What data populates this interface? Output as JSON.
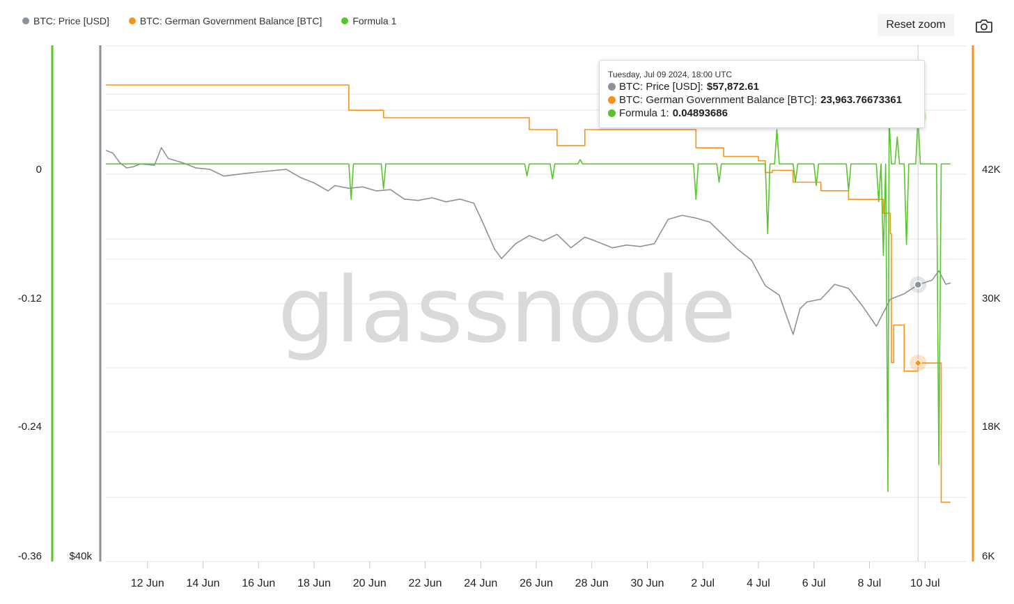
{
  "legend": [
    {
      "label": "BTC: Price [USD]",
      "color": "#8a939b"
    },
    {
      "label": "BTC: German Government Balance [BTC]",
      "color": "#f7931a"
    },
    {
      "label": "Formula 1",
      "color": "#55c728"
    }
  ],
  "toolbar": {
    "reset_label": "Reset zoom",
    "camera_icon": "camera-icon"
  },
  "watermark": "glassnode",
  "tooltip": {
    "date": "Tuesday, Jul 09 2024, 18:00 UTC",
    "rows": [
      {
        "label": "BTC: Price [USD]: ",
        "value": "$57,872.61",
        "color": "#8a939b"
      },
      {
        "label": "BTC: German Government Balance [BTC]: ",
        "value": "23,963.76673361",
        "color": "#f7931a"
      },
      {
        "label": "Formula 1: ",
        "value": "0.04893686",
        "color": "#55c728"
      }
    ]
  },
  "chart_data": {
    "type": "line",
    "x_ticks": [
      "12 Jun",
      "14 Jun",
      "16 Jun",
      "18 Jun",
      "20 Jun",
      "22 Jun",
      "24 Jun",
      "26 Jun",
      "28 Jun",
      "30 Jun",
      "2 Jul",
      "4 Jul",
      "6 Jul",
      "8 Jul",
      "10 Jul"
    ],
    "axes": {
      "formula": {
        "ticks": [
          "0",
          "-0.12",
          "-0.24",
          "-0.36"
        ],
        "range": [
          -0.36,
          0.1
        ],
        "color": "#55c728"
      },
      "price": {
        "ticks": [
          "$40k"
        ],
        "range": [
          40000,
          70000
        ],
        "color": "#8a939b"
      },
      "balance": {
        "ticks": [
          "42K",
          "30K",
          "18K",
          "6K"
        ],
        "range": [
          6000,
          54000
        ],
        "color": "#f7931a"
      }
    },
    "x_range": [
      "2024-06-10T12:00",
      "2024-07-11T12:00"
    ],
    "grid": true,
    "series": [
      {
        "name": "BTC: German Government Balance [BTC]",
        "color": "#f7931a",
        "step": true,
        "points": [
          [
            "2024-06-10T12:00",
            49850
          ],
          [
            "2024-06-19T06:00",
            49850
          ],
          [
            "2024-06-19T06:00",
            47500
          ],
          [
            "2024-06-20T06:00",
            47500
          ],
          [
            "2024-06-20T12:00",
            46800
          ],
          [
            "2024-06-25T12:00",
            46800
          ],
          [
            "2024-06-25T18:00",
            45700
          ],
          [
            "2024-06-26T12:00",
            45700
          ],
          [
            "2024-06-26T18:00",
            44200
          ],
          [
            "2024-06-27T12:00",
            44200
          ],
          [
            "2024-06-27T18:00",
            45700
          ],
          [
            "2024-07-01T12:00",
            45700
          ],
          [
            "2024-07-01T18:00",
            44000
          ],
          [
            "2024-07-02T12:00",
            44000
          ],
          [
            "2024-07-02T18:00",
            43200
          ],
          [
            "2024-07-03T12:00",
            43200
          ],
          [
            "2024-07-04T00:00",
            42800
          ],
          [
            "2024-07-04T06:00",
            41700
          ],
          [
            "2024-07-04T12:00",
            41900
          ],
          [
            "2024-07-05T00:00",
            41900
          ],
          [
            "2024-07-05T06:00",
            40800
          ],
          [
            "2024-07-06T00:00",
            40800
          ],
          [
            "2024-07-06T06:00",
            40000
          ],
          [
            "2024-07-07T06:00",
            40000
          ],
          [
            "2024-07-07T06:00",
            39200
          ],
          [
            "2024-07-08T06:00",
            39200
          ],
          [
            "2024-07-08T12:00",
            37900
          ],
          [
            "2024-07-08T18:00",
            36000
          ],
          [
            "2024-07-08T19:00",
            24000
          ],
          [
            "2024-07-08T21:00",
            27500
          ],
          [
            "2024-07-09T03:00",
            27500
          ],
          [
            "2024-07-09T06:00",
            23200
          ],
          [
            "2024-07-09T12:00",
            23200
          ],
          [
            "2024-07-09T18:00",
            23964
          ],
          [
            "2024-07-10T12:00",
            23964
          ],
          [
            "2024-07-10T14:00",
            11000
          ],
          [
            "2024-07-10T22:00",
            11000
          ]
        ]
      },
      {
        "name": "BTC: Price [USD]",
        "color": "#8a939b",
        "points": [
          [
            "2024-06-10T12:00",
            67800
          ],
          [
            "2024-06-10T18:00",
            67600
          ],
          [
            "2024-06-11T00:00",
            66900
          ],
          [
            "2024-06-11T06:00",
            66500
          ],
          [
            "2024-06-11T12:00",
            66600
          ],
          [
            "2024-06-11T18:00",
            66800
          ],
          [
            "2024-06-12T06:00",
            66700
          ],
          [
            "2024-06-12T12:00",
            68000
          ],
          [
            "2024-06-12T18:00",
            67200
          ],
          [
            "2024-06-13T06:00",
            66900
          ],
          [
            "2024-06-13T18:00",
            66500
          ],
          [
            "2024-06-14T06:00",
            66400
          ],
          [
            "2024-06-14T18:00",
            65900
          ],
          [
            "2024-06-15T12:00",
            66100
          ],
          [
            "2024-06-16T00:00",
            66200
          ],
          [
            "2024-06-16T12:00",
            66300
          ],
          [
            "2024-06-17T00:00",
            66400
          ],
          [
            "2024-06-17T12:00",
            65800
          ],
          [
            "2024-06-18T00:00",
            65400
          ],
          [
            "2024-06-18T12:00",
            64800
          ],
          [
            "2024-06-18T18:00",
            65200
          ],
          [
            "2024-06-19T06:00",
            65000
          ],
          [
            "2024-06-19T18:00",
            65100
          ],
          [
            "2024-06-20T06:00",
            64800
          ],
          [
            "2024-06-20T18:00",
            64900
          ],
          [
            "2024-06-21T06:00",
            64200
          ],
          [
            "2024-06-21T18:00",
            64100
          ],
          [
            "2024-06-22T06:00",
            64300
          ],
          [
            "2024-06-22T18:00",
            64000
          ],
          [
            "2024-06-23T06:00",
            64200
          ],
          [
            "2024-06-23T18:00",
            63900
          ],
          [
            "2024-06-24T00:00",
            62800
          ],
          [
            "2024-06-24T12:00",
            60500
          ],
          [
            "2024-06-24T18:00",
            59800
          ],
          [
            "2024-06-25T06:00",
            60900
          ],
          [
            "2024-06-25T18:00",
            61500
          ],
          [
            "2024-06-26T06:00",
            61100
          ],
          [
            "2024-06-26T18:00",
            61600
          ],
          [
            "2024-06-27T06:00",
            60600
          ],
          [
            "2024-06-27T18:00",
            61400
          ],
          [
            "2024-06-28T06:00",
            61000
          ],
          [
            "2024-06-28T18:00",
            60600
          ],
          [
            "2024-06-29T06:00",
            60800
          ],
          [
            "2024-06-29T18:00",
            60700
          ],
          [
            "2024-06-30T06:00",
            60900
          ],
          [
            "2024-06-30T18:00",
            62700
          ],
          [
            "2024-07-01T06:00",
            63000
          ],
          [
            "2024-07-01T18:00",
            62800
          ],
          [
            "2024-07-02T06:00",
            62500
          ],
          [
            "2024-07-02T18:00",
            61500
          ],
          [
            "2024-07-03T06:00",
            60500
          ],
          [
            "2024-07-03T18:00",
            59700
          ],
          [
            "2024-07-04T06:00",
            57800
          ],
          [
            "2024-07-04T18:00",
            57100
          ],
          [
            "2024-07-05T06:00",
            54200
          ],
          [
            "2024-07-05T12:00",
            56100
          ],
          [
            "2024-07-05T18:00",
            56600
          ],
          [
            "2024-07-06T06:00",
            56800
          ],
          [
            "2024-07-06T18:00",
            57900
          ],
          [
            "2024-07-07T06:00",
            57600
          ],
          [
            "2024-07-07T18:00",
            56300
          ],
          [
            "2024-07-08T06:00",
            54800
          ],
          [
            "2024-07-08T12:00",
            55800
          ],
          [
            "2024-07-08T18:00",
            56800
          ],
          [
            "2024-07-09T06:00",
            57200
          ],
          [
            "2024-07-09T18:00",
            57873
          ],
          [
            "2024-07-10T06:00",
            58200
          ],
          [
            "2024-07-10T12:00",
            58900
          ],
          [
            "2024-07-10T18:00",
            57900
          ],
          [
            "2024-07-10T22:00",
            58000
          ]
        ]
      },
      {
        "name": "Formula 1",
        "color": "#55c728",
        "points": [
          [
            "2024-06-10T12:00",
            0.005
          ],
          [
            "2024-06-19T06:00",
            0.005
          ],
          [
            "2024-06-19T08:00",
            -0.028
          ],
          [
            "2024-06-19T10:00",
            0.005
          ],
          [
            "2024-06-20T10:00",
            0.005
          ],
          [
            "2024-06-20T12:00",
            -0.018
          ],
          [
            "2024-06-20T14:00",
            0.005
          ],
          [
            "2024-06-25T14:00",
            0.005
          ],
          [
            "2024-06-25T16:00",
            -0.006
          ],
          [
            "2024-06-25T18:00",
            0.005
          ],
          [
            "2024-06-26T12:00",
            0.005
          ],
          [
            "2024-06-26T14:00",
            -0.009
          ],
          [
            "2024-06-26T16:00",
            0.005
          ],
          [
            "2024-06-27T12:00",
            0.005
          ],
          [
            "2024-06-27T14:00",
            0.009
          ],
          [
            "2024-06-27T16:00",
            0.005
          ],
          [
            "2024-07-01T16:00",
            0.005
          ],
          [
            "2024-07-01T18:00",
            -0.028
          ],
          [
            "2024-07-01T20:00",
            0.005
          ],
          [
            "2024-07-02T12:00",
            0.005
          ],
          [
            "2024-07-02T14:00",
            -0.012
          ],
          [
            "2024-07-02T16:00",
            0.005
          ],
          [
            "2024-07-04T06:00",
            0.005
          ],
          [
            "2024-07-04T08:00",
            -0.06
          ],
          [
            "2024-07-04T10:00",
            0.005
          ],
          [
            "2024-07-04T14:00",
            0.005
          ],
          [
            "2024-07-04T16:00",
            0.037
          ],
          [
            "2024-07-04T18:00",
            0.005
          ],
          [
            "2024-07-05T06:00",
            0.005
          ],
          [
            "2024-07-05T08:00",
            -0.012
          ],
          [
            "2024-07-05T10:00",
            0.005
          ],
          [
            "2024-07-06T00:00",
            0.005
          ],
          [
            "2024-07-06T02:00",
            -0.015
          ],
          [
            "2024-07-06T04:00",
            0.005
          ],
          [
            "2024-07-07T04:00",
            0.005
          ],
          [
            "2024-07-07T06:00",
            -0.02
          ],
          [
            "2024-07-07T08:00",
            0.005
          ],
          [
            "2024-07-08T06:00",
            0.005
          ],
          [
            "2024-07-08T08:00",
            -0.03
          ],
          [
            "2024-07-08T10:00",
            0.005
          ],
          [
            "2024-07-08T12:00",
            -0.08
          ],
          [
            "2024-07-08T14:00",
            0.005
          ],
          [
            "2024-07-08T16:00",
            -0.3
          ],
          [
            "2024-07-08T17:00",
            0.045
          ],
          [
            "2024-07-08T19:00",
            0.005
          ],
          [
            "2024-07-08T22:00",
            0.005
          ],
          [
            "2024-07-09T00:00",
            0.03
          ],
          [
            "2024-07-09T02:00",
            0.005
          ],
          [
            "2024-07-09T06:00",
            0.005
          ],
          [
            "2024-07-09T08:00",
            -0.07
          ],
          [
            "2024-07-09T10:00",
            0.005
          ],
          [
            "2024-07-09T16:00",
            0.005
          ],
          [
            "2024-07-09T18:00",
            0.049
          ],
          [
            "2024-07-09T20:00",
            0.005
          ],
          [
            "2024-07-10T10:00",
            0.005
          ],
          [
            "2024-07-10T12:00",
            -0.275
          ],
          [
            "2024-07-10T14:00",
            0.005
          ],
          [
            "2024-07-10T22:00",
            0.005
          ]
        ]
      }
    ],
    "hover": {
      "x": "2024-07-09T18:00",
      "price": 57873,
      "balance": 23964,
      "formula": 0.049
    }
  }
}
